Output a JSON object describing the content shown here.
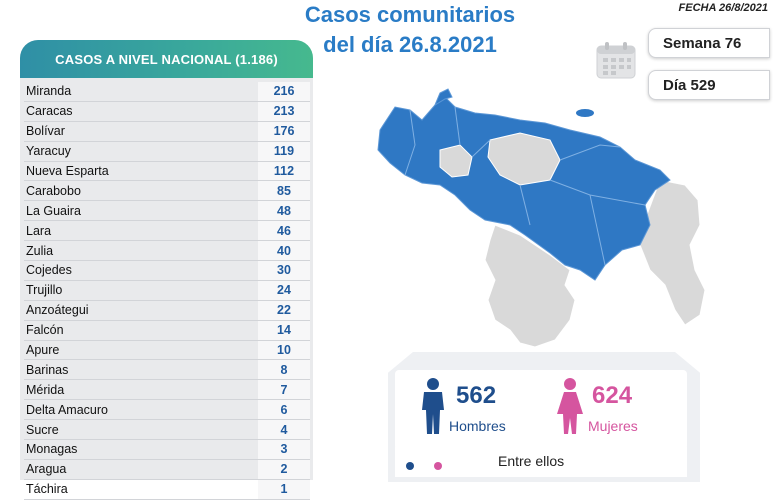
{
  "header": {
    "title_line1": "Casos comunitarios",
    "title_line2": "del día 26.8.2021",
    "date": "FECHA 26/8/2021"
  },
  "panel": {
    "heading": "CASOS A NIVEL NACIONAL (1.186)",
    "rows": [
      {
        "state": "Miranda",
        "value": "216"
      },
      {
        "state": "Caracas",
        "value": "213"
      },
      {
        "state": "Bolívar",
        "value": "176"
      },
      {
        "state": "Yaracuy",
        "value": "119"
      },
      {
        "state": "Nueva Esparta",
        "value": "112"
      },
      {
        "state": "Carabobo",
        "value": "85"
      },
      {
        "state": "La Guaira",
        "value": "48"
      },
      {
        "state": "Lara",
        "value": "46"
      },
      {
        "state": "Zulia",
        "value": "40"
      },
      {
        "state": "Cojedes",
        "value": "30"
      },
      {
        "state": "Trujillo",
        "value": "24"
      },
      {
        "state": "Anzoátegui",
        "value": "22"
      },
      {
        "state": "Falcón",
        "value": "14"
      },
      {
        "state": "Apure",
        "value": "10"
      },
      {
        "state": "Barinas",
        "value": "8"
      },
      {
        "state": "Mérida",
        "value": "7"
      },
      {
        "state": "Delta Amacuro",
        "value": "6"
      },
      {
        "state": "Sucre",
        "value": "4"
      },
      {
        "state": "Monagas",
        "value": "3"
      },
      {
        "state": "Aragua",
        "value": "2"
      },
      {
        "state": "Táchira",
        "value": "1"
      }
    ]
  },
  "badges": {
    "week": "Semana 76",
    "day": "Día 529"
  },
  "gender": {
    "men_count": "562",
    "men_label": "Hombres",
    "women_count": "624",
    "women_label": "Mujeres",
    "between_label": "Entre ellos"
  },
  "colors": {
    "title": "#2a7cc6",
    "map_active": "#2f78c4",
    "map_inactive": "#d9d9d9",
    "men": "#1f4e8c",
    "women": "#d5559f"
  },
  "icons": [
    "calendar-icon",
    "man-icon",
    "woman-icon"
  ]
}
